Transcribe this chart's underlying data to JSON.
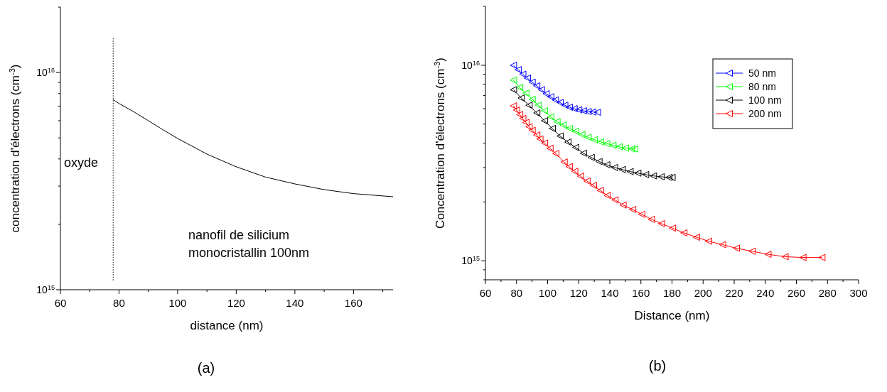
{
  "chart_data": [
    {
      "type": "line",
      "xlabel": "distance (nm)",
      "ylabel": "concentration d'électrons (cm$^{-3}$)",
      "log": "y",
      "xlim": [
        60,
        173.5
      ],
      "ylim": [
        1000000000000000.0,
        2e+16
      ],
      "xticks": [
        60,
        {
          "value": 70,
          "label": null
        },
        80,
        {
          "value": 90,
          "label": null
        },
        100,
        {
          "value": 110,
          "label": null
        },
        120,
        {
          "value": 130,
          "label": null
        },
        140,
        {
          "value": 150,
          "label": null
        },
        160,
        {
          "value": 170,
          "label": null
        }
      ],
      "yticks": [
        {
          "value": 1000000000000000.0,
          "label": "10$^{15}$"
        },
        {
          "value": 2000000000000000.0,
          "label": null
        },
        {
          "value": 3000000000000000.0,
          "label": null
        },
        {
          "value": 4000000000000000.0,
          "label": null
        },
        {
          "value": 5000000000000000.0,
          "label": null
        },
        {
          "value": 6000000000000000.0,
          "label": null
        },
        {
          "value": 7000000000000000.0,
          "label": null
        },
        {
          "value": 8000000000000000.0,
          "label": null
        },
        {
          "value": 9000000000000000.0,
          "label": null
        },
        {
          "value": 1e+16,
          "label": "10$^{16}$"
        },
        {
          "value": 2e+16,
          "label": null
        }
      ],
      "grid": false,
      "legend": false,
      "marker": "none",
      "line_style": "solid",
      "ref_lines": [
        {
          "axis": "x",
          "value": 78,
          "label": null,
          "color": "#000000",
          "line_style": "dotted"
        }
      ],
      "annotations": [
        "oxyde",
        "nanofil de silicium\nmonocristallin 100nm",
        "(a)"
      ],
      "series": [
        {
          "color": "#000000",
          "x": [
            78,
            80,
            85,
            90,
            95,
            100,
            110,
            120,
            130,
            140,
            150,
            160,
            173.5
          ],
          "values": [
            7500000000000000.0,
            7200000000000000.0,
            6600000000000000.0,
            6000000000000000.0,
            5450000000000000.0,
            4970000000000000.0,
            4210000000000000.0,
            3680000000000000.0,
            3300000000000000.0,
            3070000000000000.0,
            2890000000000000.0,
            2770000000000000.0,
            2680000000000000.0
          ]
        }
      ]
    },
    {
      "type": "line",
      "xlabel": "Distance (nm)",
      "ylabel": "Concentration d'électrons (cm$^{-3}$)",
      "log": "y",
      "xlim": [
        60,
        300
      ],
      "ylim": [
        800000000000000.0,
        2e+16
      ],
      "xticks": [
        60,
        {
          "value": 70,
          "label": null
        },
        80,
        {
          "value": 90,
          "label": null
        },
        100,
        {
          "value": 110,
          "label": null
        },
        120,
        {
          "value": 130,
          "label": null
        },
        140,
        {
          "value": 150,
          "label": null
        },
        160,
        {
          "value": 170,
          "label": null
        },
        180,
        {
          "value": 190,
          "label": null
        },
        200,
        {
          "value": 210,
          "label": null
        },
        220,
        {
          "value": 230,
          "label": null
        },
        240,
        {
          "value": 250,
          "label": null
        },
        260,
        {
          "value": 270,
          "label": null
        },
        280,
        {
          "value": 290,
          "label": null
        },
        300
      ],
      "yticks": [
        {
          "value": 800000000000000.0,
          "label": null
        },
        {
          "value": 900000000000000.0,
          "label": null
        },
        {
          "value": 1000000000000000.0,
          "label": "10$^{15}$"
        },
        {
          "value": 2000000000000000.0,
          "label": null
        },
        {
          "value": 3000000000000000.0,
          "label": null
        },
        {
          "value": 4000000000000000.0,
          "label": null
        },
        {
          "value": 5000000000000000.0,
          "label": null
        },
        {
          "value": 6000000000000000.0,
          "label": null
        },
        {
          "value": 7000000000000000.0,
          "label": null
        },
        {
          "value": 8000000000000000.0,
          "label": null
        },
        {
          "value": 9000000000000000.0,
          "label": null
        },
        {
          "value": 1e+16,
          "label": "10$^{16}$"
        },
        {
          "value": 2e+16,
          "label": null
        }
      ],
      "grid": false,
      "legend": "top right",
      "marker": "triangle",
      "line_style": "solid",
      "annotations": [
        "(b)"
      ],
      "series": [
        {
          "name": "50 nm",
          "color": "#0000ff",
          "x": [
            78,
            81,
            84,
            87,
            90,
            93,
            96,
            99,
            102,
            105,
            108,
            111,
            114,
            117,
            120,
            123,
            126,
            129,
            132
          ],
          "values": [
            1e+16,
            9500000000000000.0,
            9000000000000000.0,
            8600000000000000.0,
            8200000000000000.0,
            7850000000000000.0,
            7500000000000000.0,
            7150000000000000.0,
            6900000000000000.0,
            6650000000000000.0,
            6450000000000000.0,
            6250000000000000.0,
            6100000000000000.0,
            6000000000000000.0,
            5920000000000000.0,
            5850000000000000.0,
            5800000000000000.0,
            5770000000000000.0,
            5750000000000000.0
          ]
        },
        {
          "name": "80 nm",
          "color": "#00ff00",
          "x": [
            78,
            82,
            86,
            90,
            94,
            98,
            102,
            106,
            110,
            114,
            118,
            122,
            126,
            130,
            134,
            138,
            142,
            146,
            150,
            154,
            156
          ],
          "values": [
            8400000000000000.0,
            7700000000000000.0,
            7200000000000000.0,
            6700000000000000.0,
            6250000000000000.0,
            5850000000000000.0,
            5450000000000000.0,
            5150000000000000.0,
            4950000000000000.0,
            4750000000000000.0,
            4600000000000000.0,
            4420000000000000.0,
            4280000000000000.0,
            4160000000000000.0,
            4060000000000000.0,
            3980000000000000.0,
            3900000000000000.0,
            3830000000000000.0,
            3770000000000000.0,
            3740000000000000.0,
            3730000000000000.0
          ]
        },
        {
          "name": "100 nm",
          "color": "#000000",
          "x": [
            78,
            83,
            88,
            93,
            98,
            103,
            108,
            113,
            118,
            123,
            128,
            133,
            138,
            143,
            148,
            153,
            158,
            163,
            168,
            173,
            178,
            180
          ],
          "values": [
            7500000000000000.0,
            6800000000000000.0,
            6250000000000000.0,
            5700000000000000.0,
            5200000000000000.0,
            4750000000000000.0,
            4350000000000000.0,
            4050000000000000.0,
            3800000000000000.0,
            3550000000000000.0,
            3380000000000000.0,
            3220000000000000.0,
            3100000000000000.0,
            3000000000000000.0,
            2930000000000000.0,
            2860000000000000.0,
            2810000000000000.0,
            2760000000000000.0,
            2720000000000000.0,
            2690000000000000.0,
            2670000000000000.0,
            2670000000000000.0
          ]
        },
        {
          "name": "200 nm",
          "color": "#ff0000",
          "x": [
            78,
            80,
            82,
            84,
            86,
            88,
            90,
            93,
            95,
            98,
            101.5,
            105.2,
            110.6,
            113.9,
            117.4,
            121.2,
            125.3,
            129.5,
            133.9,
            138.4,
            143.3,
            148.5,
            154.7,
            160.5,
            166.8,
            173.2,
            180.3,
            187.6,
            195.7,
            203.5,
            212.5,
            221.4,
            231.5,
            241.7,
            252.7,
            264.2,
            276.4
          ],
          "values": [
            6200000000000000.0,
            5900000000000000.0,
            5600000000000000.0,
            5350000000000000.0,
            5100000000000000.0,
            4850000000000000.0,
            4650000000000000.0,
            4400000000000000.0,
            4200000000000000.0,
            4000000000000000.0,
            3760000000000000.0,
            3540000000000000.0,
            3200000000000000.0,
            3030000000000000.0,
            2870000000000000.0,
            2710000000000000.0,
            2560000000000000.0,
            2430000000000000.0,
            2290000000000000.0,
            2160000000000000.0,
            2050000000000000.0,
            1930000000000000.0,
            1830000000000000.0,
            1730000000000000.0,
            1630000000000000.0,
            1550000000000000.0,
            1470000000000000.0,
            1390000000000000.0,
            1320000000000000.0,
            1260000000000000.0,
            1210000000000000.0,
            1160000000000000.0,
            1120000000000000.0,
            1080000000000000.0,
            1050000000000000.0,
            1040000000000000.0,
            1040000000000000.0
          ]
        }
      ]
    }
  ]
}
